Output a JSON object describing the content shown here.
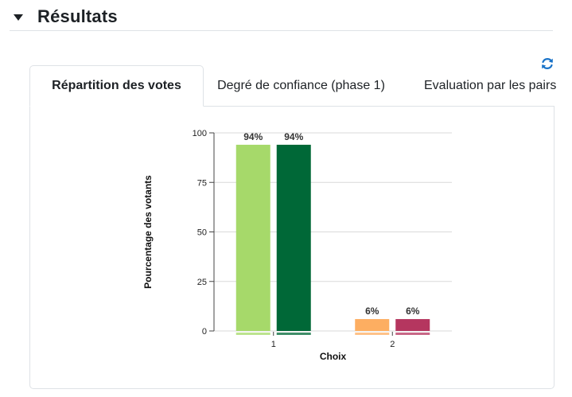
{
  "section": {
    "title": "Résultats"
  },
  "toolbar": {
    "refresh_icon": "refresh-icon"
  },
  "tabs": [
    {
      "label": "Répartition des votes",
      "active": true
    },
    {
      "label": "Degré de confiance (phase 1)",
      "active": false
    },
    {
      "label": "Evaluation par les pairs",
      "active": false
    }
  ],
  "chart_data": {
    "type": "bar",
    "categories": [
      "1",
      "2"
    ],
    "series": [
      {
        "values": [
          94,
          6
        ]
      },
      {
        "values": [
          94,
          6
        ]
      }
    ],
    "colors": [
      [
        "#a6d96a",
        "#006837"
      ],
      [
        "#fdae61",
        "#b5365f"
      ]
    ],
    "data_labels": [
      [
        "94%",
        "94%"
      ],
      [
        "6%",
        "6%"
      ]
    ],
    "xlabel": "Choix",
    "ylabel": "Pourcentage des votants",
    "ylim": [
      0,
      100
    ],
    "yticks": [
      0,
      25,
      50,
      75,
      100
    ],
    "grid": true
  }
}
